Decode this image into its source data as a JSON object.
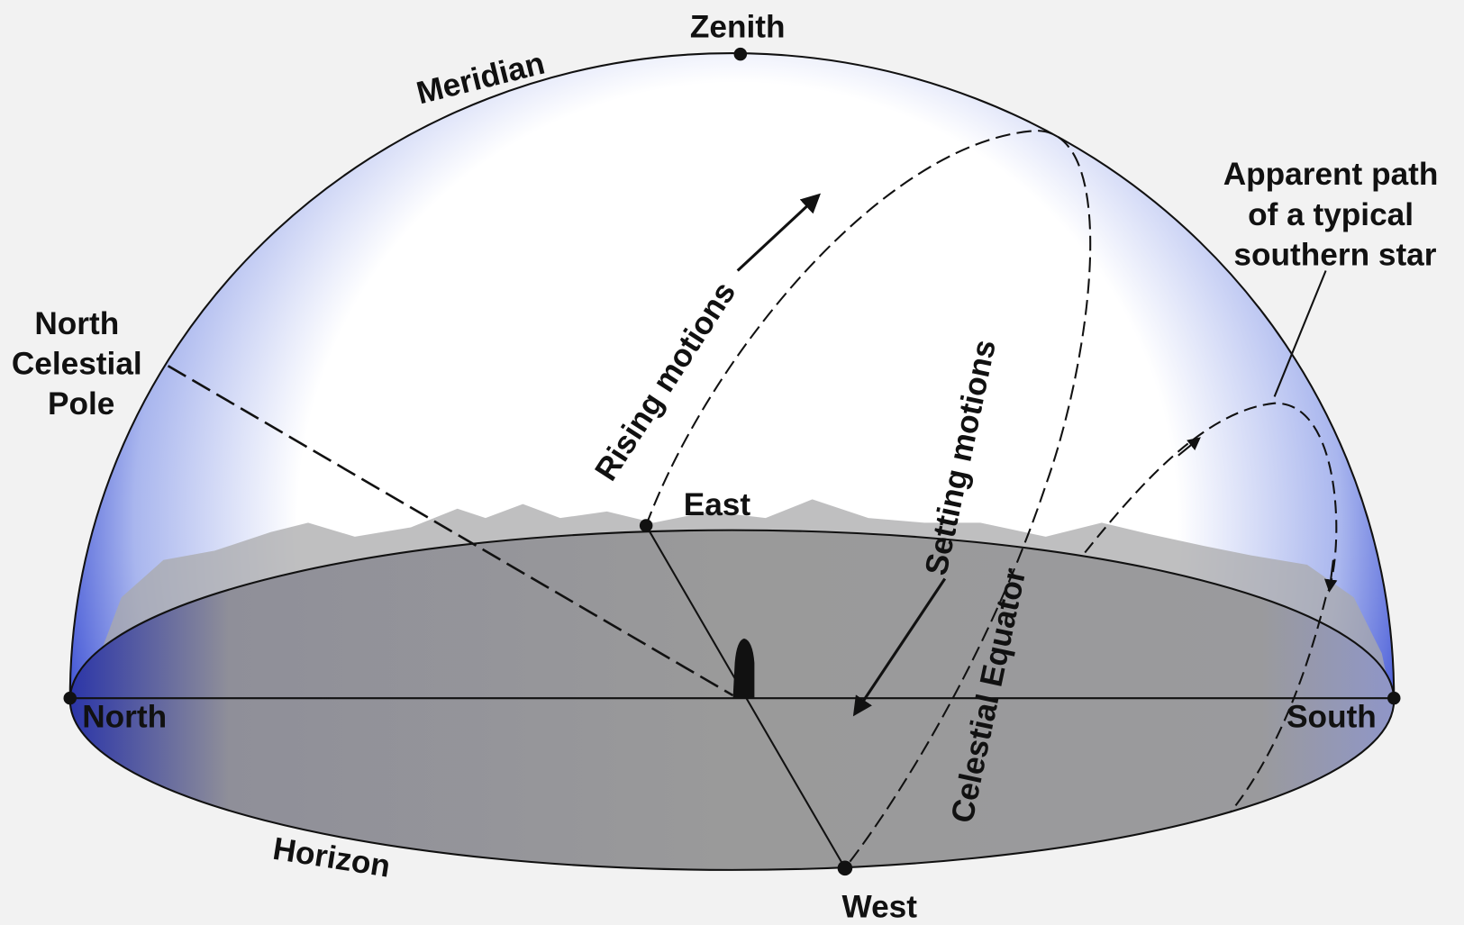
{
  "labels": {
    "zenith": "Zenith",
    "meridian": "Meridian",
    "north_celestial_pole": [
      "North",
      "Celestial",
      "Pole"
    ],
    "east": "East",
    "west": "West",
    "north": "North",
    "south": "South",
    "horizon": "Horizon",
    "rising_motions": "Rising motions",
    "setting_motions": "Setting motions",
    "celestial_equator": "Celestial Equator",
    "apparent_path": [
      "Apparent path",
      "of a typical",
      "southern star"
    ]
  }
}
